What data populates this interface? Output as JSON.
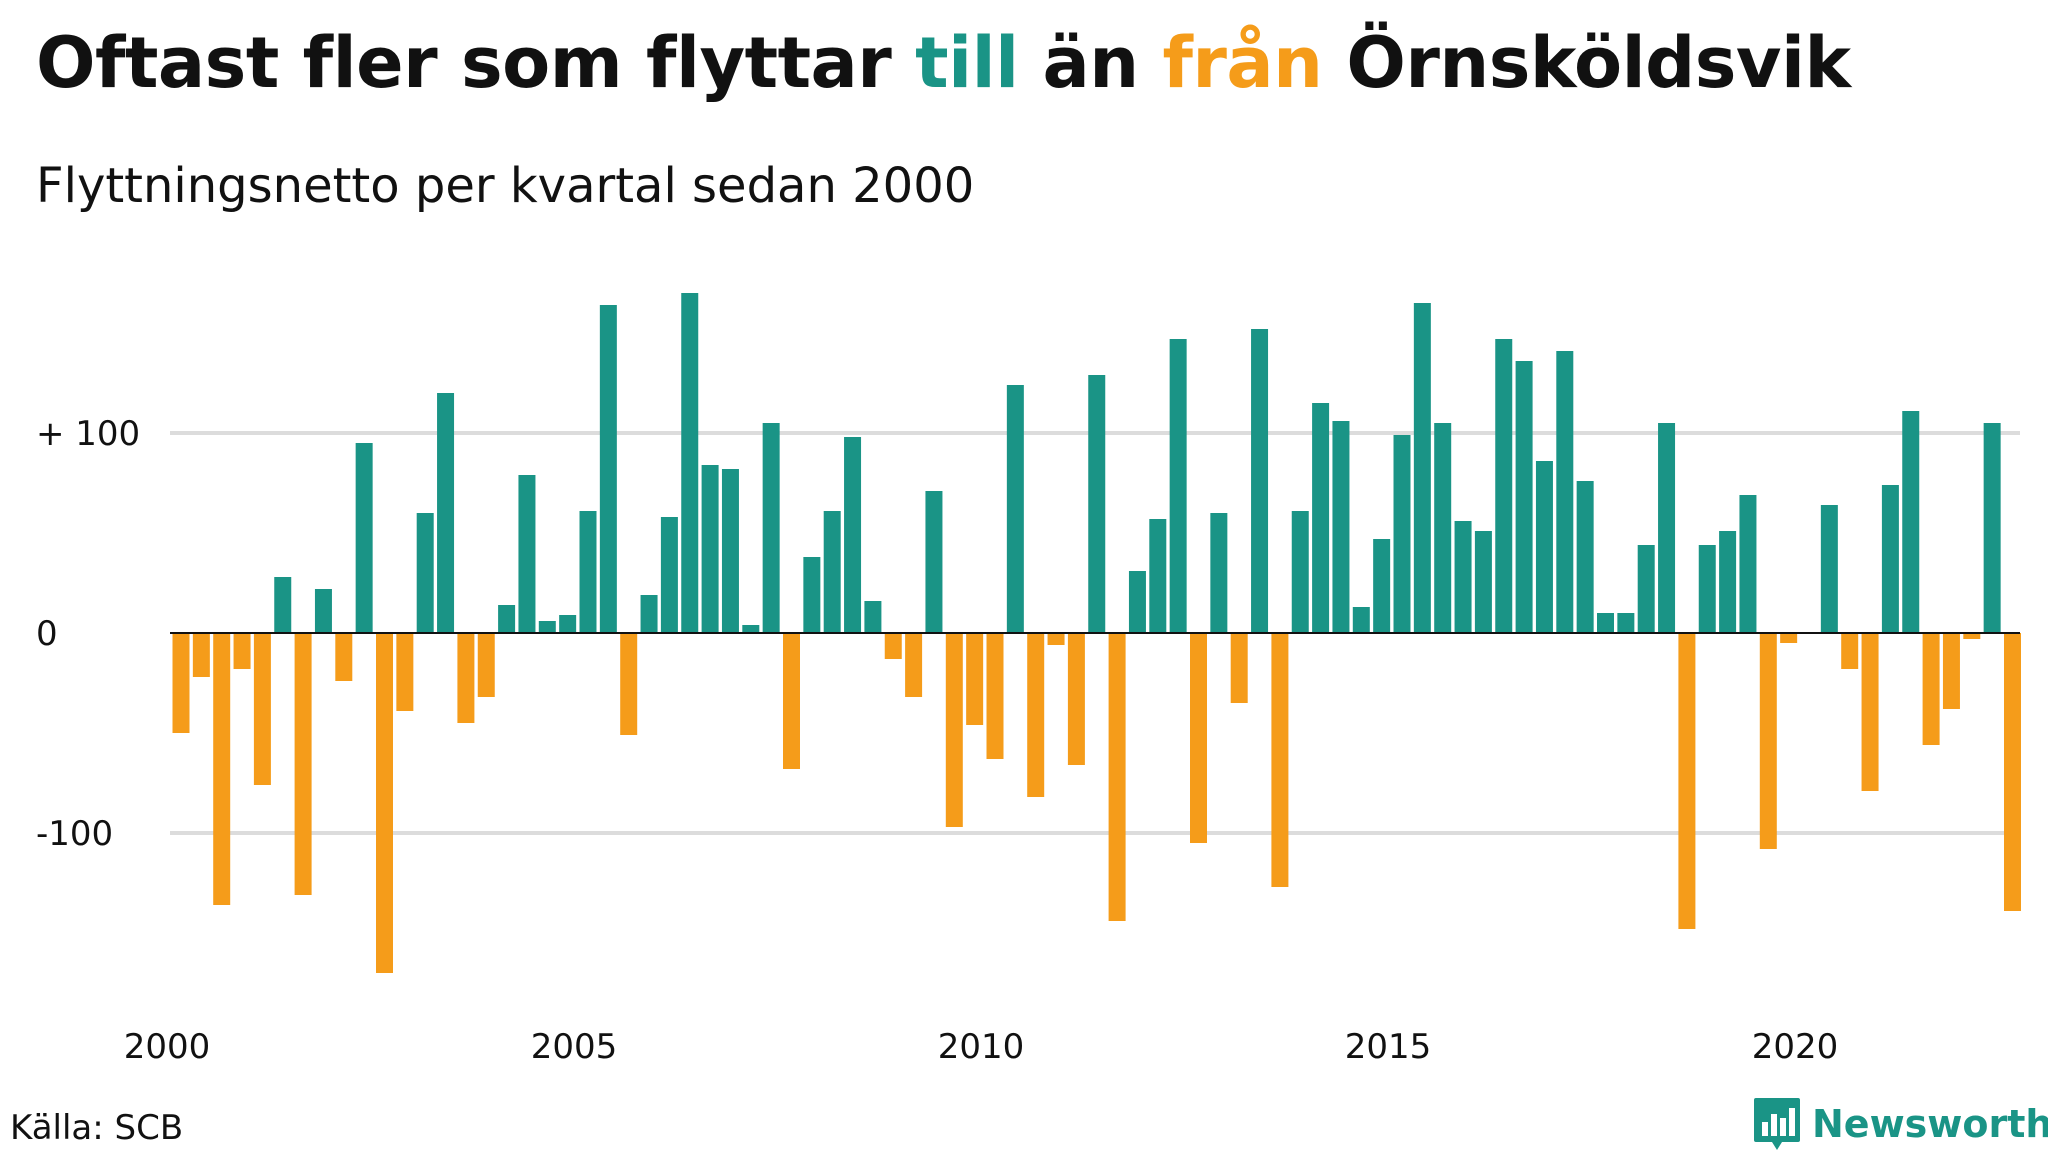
{
  "title": {
    "part1": "Oftast fler som flyttar ",
    "positive_word": "till",
    "part2": " än ",
    "negative_word": "från",
    "part3": " Örnsköldsvik"
  },
  "subtitle": "Flyttningsnetto per kvartal sedan 2000",
  "source": "Källa: SCB",
  "brand": {
    "name": "Newsworthy",
    "logo_icon": "newsworthy-bar-chart-logo-icon"
  },
  "colors": {
    "positive": "#1a9486",
    "negative": "#f59c1a",
    "grid": "#dcdcdc",
    "axis": "#111111"
  },
  "chart_data": {
    "type": "bar",
    "x_start": 2000,
    "period": "quarter",
    "ylim": [
      -180,
      180
    ],
    "yticks": [
      {
        "value": 100,
        "label": "+ 100"
      },
      {
        "value": 0,
        "label": "0"
      },
      {
        "value": -100,
        "label": "-100"
      }
    ],
    "xticks": [
      {
        "value": 2000,
        "label": "2000"
      },
      {
        "value": 2005,
        "label": "2005"
      },
      {
        "value": 2010,
        "label": "2010"
      },
      {
        "value": 2015,
        "label": "2015"
      },
      {
        "value": 2020,
        "label": "2020"
      }
    ],
    "grid": true,
    "values": [
      -50,
      -22,
      -136,
      -18,
      -76,
      28,
      -131,
      22,
      -24,
      95,
      -170,
      -39,
      60,
      120,
      -45,
      -32,
      14,
      79,
      6,
      9,
      61,
      164,
      -51,
      19,
      58,
      170,
      84,
      82,
      4,
      105,
      -68,
      38,
      61,
      98,
      16,
      -13,
      -32,
      71,
      -97,
      -46,
      -63,
      124,
      -82,
      -6,
      -66,
      129,
      -144,
      31,
      57,
      147,
      -105,
      60,
      -35,
      152,
      -127,
      61,
      115,
      106,
      13,
      47,
      99,
      165,
      105,
      56,
      51,
      147,
      136,
      86,
      141,
      76,
      10,
      10,
      44,
      105,
      -148,
      44,
      51,
      69,
      -108,
      -5,
      0,
      64,
      -18,
      -79,
      74,
      111,
      -56,
      -38,
      -3,
      105,
      -139
    ]
  }
}
